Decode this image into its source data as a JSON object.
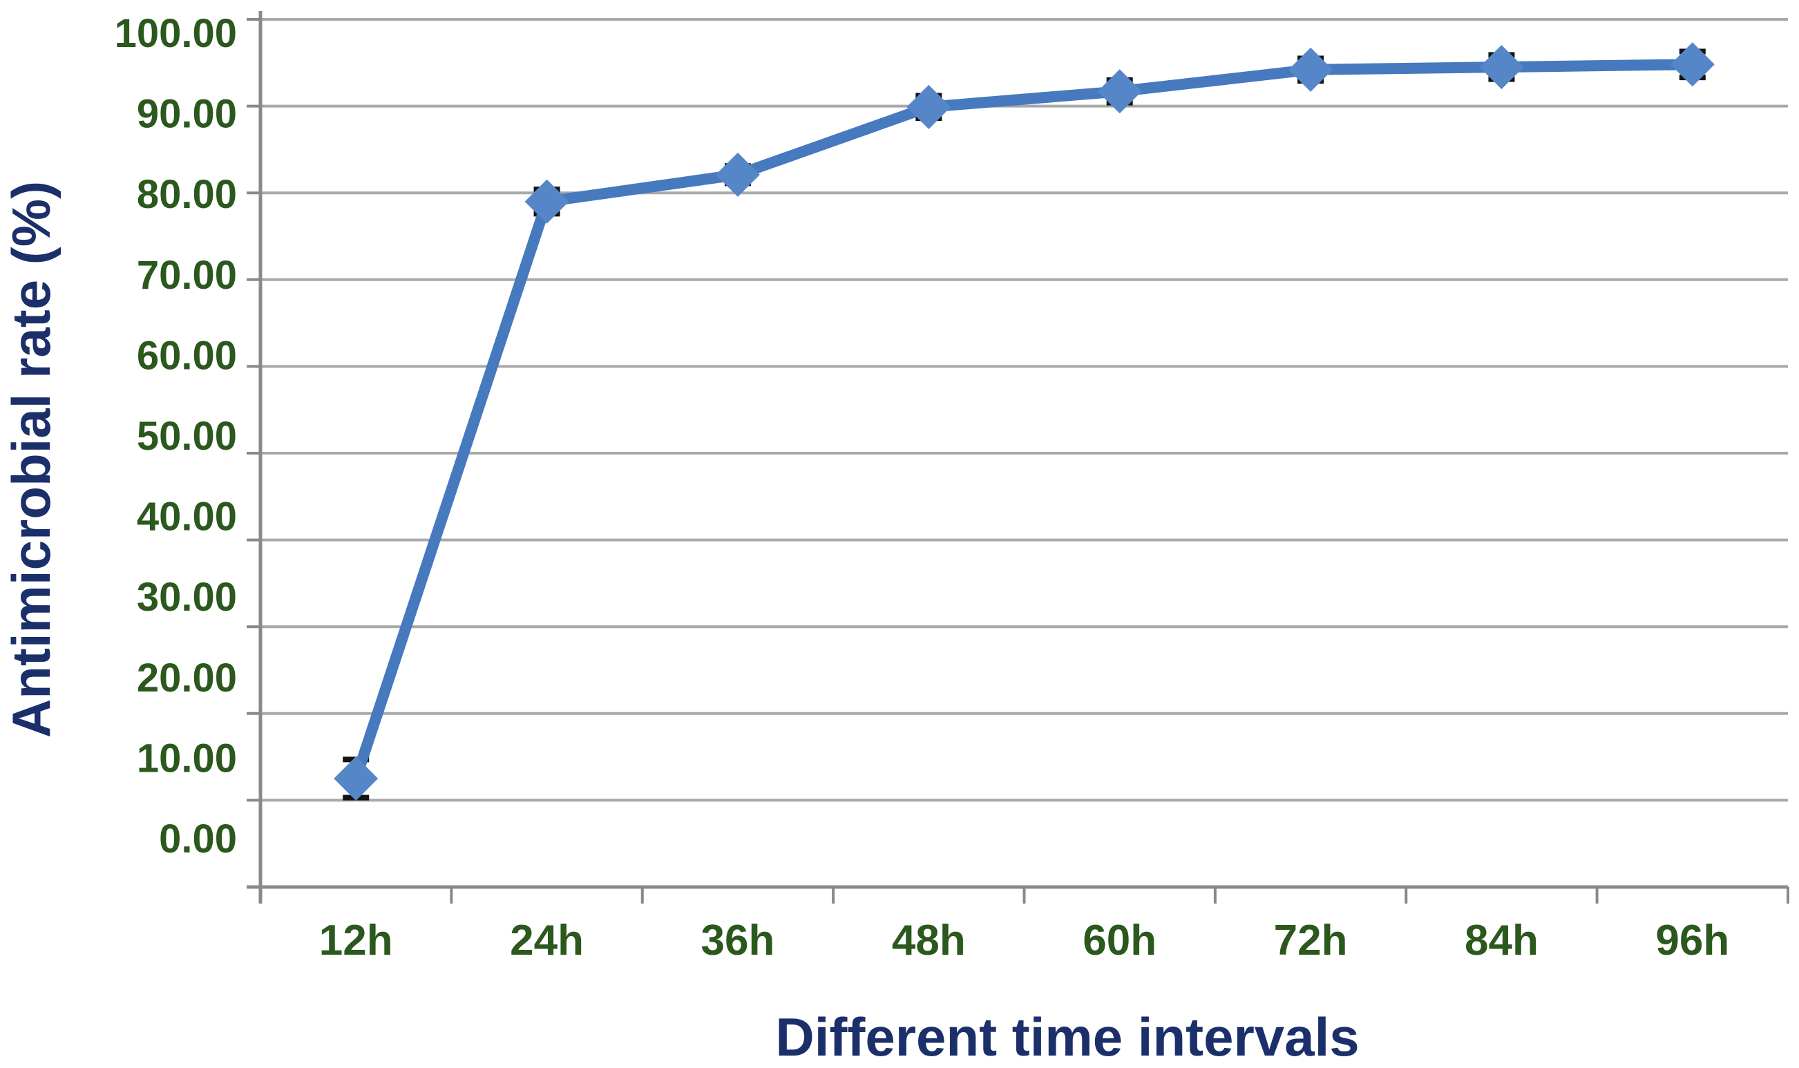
{
  "chart_data": {
    "type": "line",
    "title": "",
    "xlabel": "Different time intervals",
    "ylabel": "Antimicrobial rate (%)",
    "categories": [
      "12h",
      "24h",
      "36h",
      "48h",
      "60h",
      "72h",
      "84h",
      "96h"
    ],
    "values": [
      12.5,
      79.0,
      82.1,
      89.9,
      91.7,
      94.2,
      94.5,
      94.8
    ],
    "error_bars": [
      2.2,
      1.4,
      1.0,
      1.3,
      1.3,
      1.3,
      1.4,
      1.5
    ],
    "ylim": [
      0,
      100
    ],
    "y_tick_step": 10,
    "y_tick_labels": [
      "100.00",
      "90.00",
      "80.00",
      "70.00",
      "60.00",
      "50.00",
      "40.00",
      "30.00",
      "20.00",
      "10.00",
      "0.00"
    ],
    "grid": "horizontal",
    "legend": "none",
    "marker": "diamond",
    "colors": {
      "line": "#4679BE",
      "marker": "#5587C8",
      "error_bar": "#141414",
      "gridline": "#A9A9A9",
      "axis_line": "#898989",
      "tick_label_green": "#2B581D",
      "axis_title_navy": "#1B2F6A",
      "background": "#FFFFFF"
    }
  }
}
